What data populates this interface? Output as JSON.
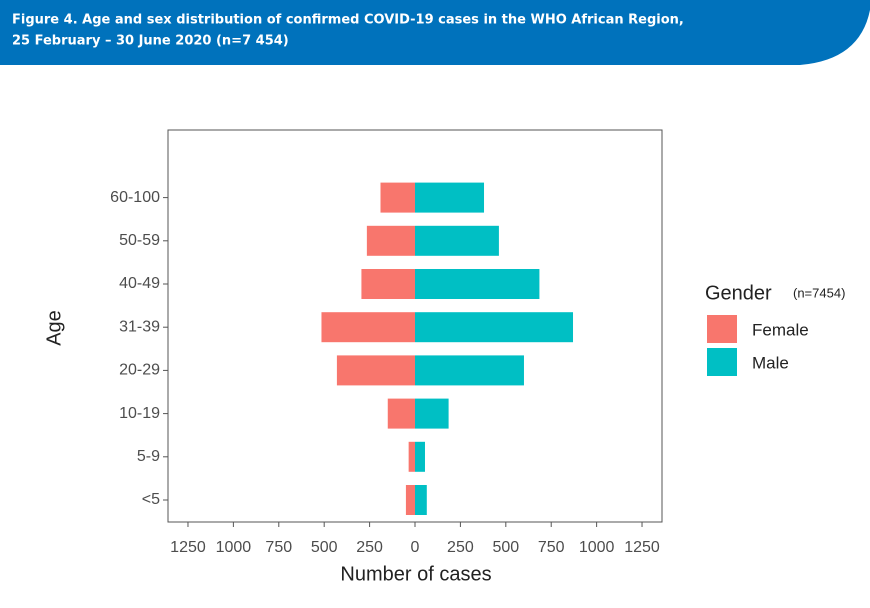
{
  "header": {
    "title_line1": "Figure 4. Age and sex distribution of confirmed COVID-19 cases in the WHO African Region,",
    "title_line2": "25 February – 30 June 2020 (n=7 454)"
  },
  "chart_data": {
    "type": "pyramid",
    "xlabel": "Number of cases",
    "ylabel": "Age",
    "categories": [
      "<5",
      "5-9",
      "10-19",
      "20-29",
      "31-39",
      "40-49",
      "50-59",
      "60-100"
    ],
    "series": [
      {
        "name": "Female",
        "color": "#F8766D",
        "values": [
          -50,
          -35,
          -150,
          -430,
          -515,
          -295,
          -265,
          -190
        ]
      },
      {
        "name": "Male",
        "color": "#00BFC4",
        "values": [
          65,
          55,
          185,
          600,
          870,
          685,
          462,
          380
        ]
      }
    ],
    "xlim": [
      -1360,
      1360
    ],
    "xticks": [
      {
        "value": -1250,
        "label": "1250"
      },
      {
        "value": -1000,
        "label": "1000"
      },
      {
        "value": -750,
        "label": "750"
      },
      {
        "value": -500,
        "label": "500"
      },
      {
        "value": -250,
        "label": "250"
      },
      0,
      250,
      500,
      750,
      1000,
      1250
    ],
    "legend": {
      "title": "Gender",
      "note": "(n=7454)",
      "position": "right"
    },
    "grid": false
  }
}
